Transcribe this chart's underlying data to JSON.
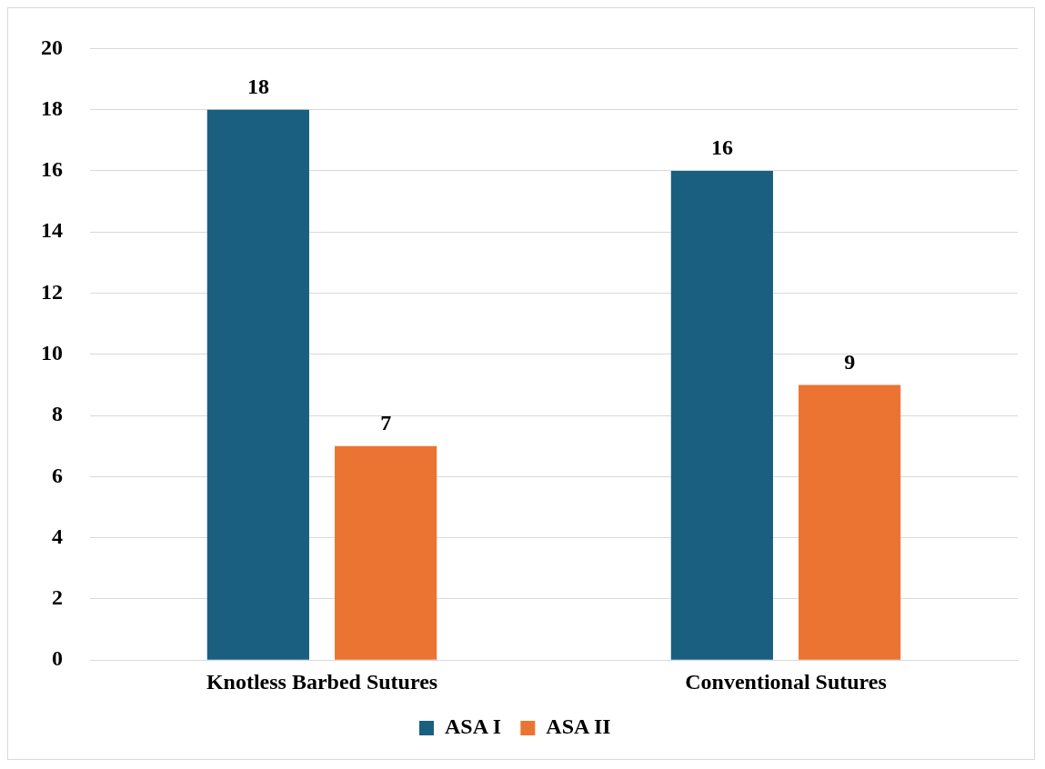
{
  "chart_data": {
    "type": "bar",
    "categories": [
      "Knotless Barbed Sutures",
      "Conventional Sutures"
    ],
    "series": [
      {
        "name": "ASA I",
        "color": "#1b5f80",
        "values": [
          18,
          16
        ]
      },
      {
        "name": "ASA II",
        "color": "#eb7433",
        "values": [
          7,
          9
        ]
      }
    ],
    "ylim": [
      0,
      20
    ],
    "yticks": [
      0,
      2,
      4,
      6,
      8,
      10,
      12,
      14,
      16,
      18,
      20
    ],
    "grid": "y",
    "legend": "bottom",
    "data_labels": true
  }
}
